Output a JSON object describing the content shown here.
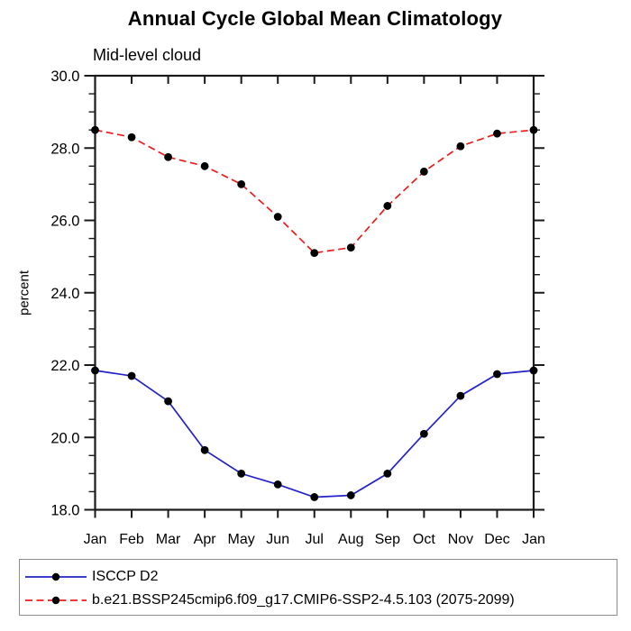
{
  "chart_data": {
    "type": "line",
    "title": "Annual Cycle Global Mean Climatology",
    "subtitle": "Mid-level cloud",
    "ylabel": "percent",
    "categories": [
      "Jan",
      "Feb",
      "Mar",
      "Apr",
      "May",
      "Jun",
      "Jul",
      "Aug",
      "Sep",
      "Oct",
      "Nov",
      "Dec",
      "Jan"
    ],
    "ylim": [
      18.0,
      30.0
    ],
    "yticks_major": [
      30.0,
      28.0,
      26.0,
      24.0,
      22.0,
      20.0,
      18.0
    ],
    "ytick_labels": [
      "30.0",
      "28.0",
      "26.0",
      "24.0",
      "22.0",
      "20.0",
      "18.0"
    ],
    "ytick_minor_interval": 0.5,
    "grid": false,
    "legend_position": "bottom-left-box",
    "axis_color": "#1a1a1a",
    "series": [
      {
        "name": "ISCCP D2",
        "color": "#2222c8",
        "line_style": "solid",
        "marker": "filled-circle",
        "marker_color": "#000000",
        "values": [
          21.85,
          21.7,
          21.0,
          19.65,
          19.0,
          18.7,
          18.35,
          18.4,
          19.0,
          20.1,
          21.15,
          21.75,
          21.85
        ]
      },
      {
        "name": "b.e21.BSSP245cmip6.f09_g17.CMIP6-SSP2-4.5.103 (2075-2099)",
        "color": "#ee1c1c",
        "line_style": "dashed",
        "marker": "filled-circle",
        "marker_color": "#000000",
        "values": [
          28.5,
          28.3,
          27.75,
          27.5,
          27.0,
          26.1,
          25.1,
          25.25,
          26.4,
          27.35,
          28.05,
          28.4,
          28.5
        ]
      }
    ]
  }
}
